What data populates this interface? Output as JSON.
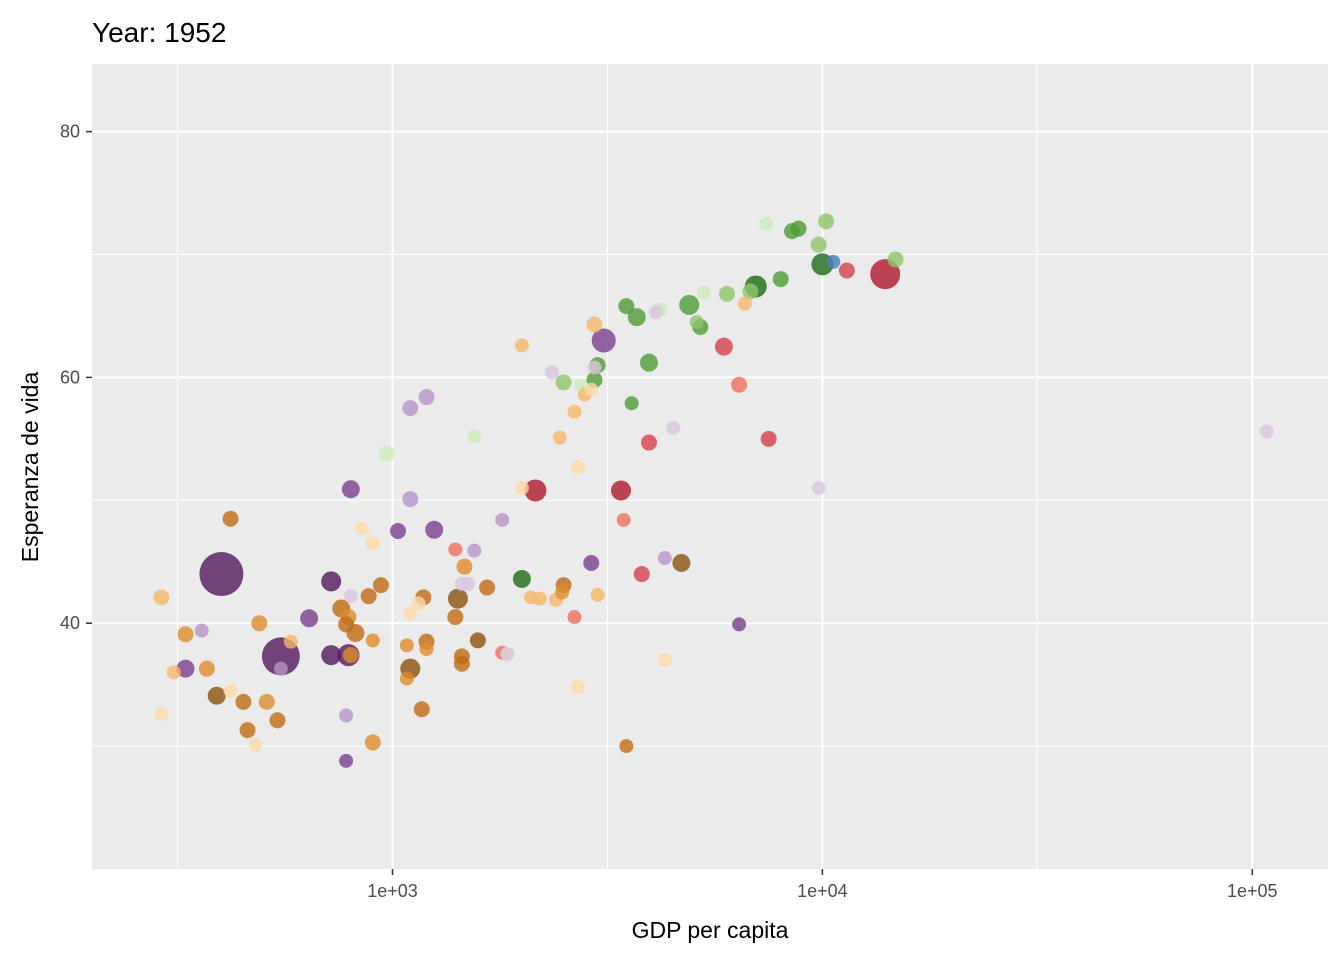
{
  "chart_data": {
    "type": "scatter",
    "title": "Year: 1952",
    "xlabel": "GDP per capita",
    "ylabel": "Esperanza de vida",
    "x_scale": "log10",
    "xlim": [
      200,
      150000
    ],
    "ylim": [
      20,
      85.5
    ],
    "x_ticks": [
      {
        "value": 1000,
        "label": "1e+03"
      },
      {
        "value": 10000,
        "label": "1e+04"
      },
      {
        "value": 100000,
        "label": "1e+05"
      }
    ],
    "y_ticks": [
      {
        "value": 40,
        "label": "40"
      },
      {
        "value": 60,
        "label": "60"
      },
      {
        "value": 80,
        "label": "80"
      }
    ],
    "grid": true,
    "legend": "none",
    "colors": {
      "panel": "#ebebeb",
      "grid": "#ffffff",
      "purple_dark": "#54195e",
      "purple": "#7b3f92",
      "purple_light": "#b893c9",
      "purple_pale": "#dbc6e0",
      "brown": "#8c510a",
      "orange_dark": "#c06b13",
      "orange": "#e08b2a",
      "orange_light": "#f7b86a",
      "orange_pale": "#fdd9a6",
      "red_dark": "#b2182b",
      "red": "#d6404a",
      "red_light": "#ef6f5e",
      "green_dark": "#1b6b13",
      "green": "#4d9c33",
      "green_light": "#8fc569",
      "green_pale": "#cdeaba",
      "blue": "#4a7cb8"
    },
    "points": [
      {
        "x": 400,
        "y": 44,
        "s": 22,
        "c": "purple_dark"
      },
      {
        "x": 550,
        "y": 37.3,
        "s": 19,
        "c": "purple_dark"
      },
      {
        "x": 14000,
        "y": 68.4,
        "s": 15,
        "c": "red_dark"
      },
      {
        "x": 3100,
        "y": 63,
        "s": 12,
        "c": "purple"
      },
      {
        "x": 2150,
        "y": 50.8,
        "s": 11,
        "c": "red_dark"
      },
      {
        "x": 3400,
        "y": 50.8,
        "s": 10,
        "c": "red_dark"
      },
      {
        "x": 7000,
        "y": 67.4,
        "s": 11,
        "c": "green_dark"
      },
      {
        "x": 10000,
        "y": 69.2,
        "s": 11,
        "c": "green_dark"
      },
      {
        "x": 4900,
        "y": 65.9,
        "s": 10,
        "c": "green"
      },
      {
        "x": 3700,
        "y": 64.9,
        "s": 9,
        "c": "green"
      },
      {
        "x": 3950,
        "y": 61.2,
        "s": 9,
        "c": "green"
      },
      {
        "x": 3000,
        "y": 61,
        "s": 8,
        "c": "green"
      },
      {
        "x": 2950,
        "y": 59.8,
        "s": 8,
        "c": "green"
      },
      {
        "x": 2000,
        "y": 43.6,
        "s": 9,
        "c": "green_dark"
      },
      {
        "x": 3500,
        "y": 65.8,
        "s": 8,
        "c": "green"
      },
      {
        "x": 3600,
        "y": 57.9,
        "s": 7,
        "c": "green"
      },
      {
        "x": 5200,
        "y": 64.1,
        "s": 8,
        "c": "green"
      },
      {
        "x": 5100,
        "y": 64.5,
        "s": 7,
        "c": "green_light"
      },
      {
        "x": 6000,
        "y": 66.8,
        "s": 8,
        "c": "green_light"
      },
      {
        "x": 6800,
        "y": 67,
        "s": 8,
        "c": "green_light"
      },
      {
        "x": 8000,
        "y": 68,
        "s": 8,
        "c": "green"
      },
      {
        "x": 8500,
        "y": 71.9,
        "s": 8,
        "c": "green"
      },
      {
        "x": 8800,
        "y": 72.1,
        "s": 8,
        "c": "green"
      },
      {
        "x": 9800,
        "y": 70.8,
        "s": 8,
        "c": "green_light"
      },
      {
        "x": 10200,
        "y": 72.7,
        "s": 8,
        "c": "green_light"
      },
      {
        "x": 14800,
        "y": 69.6,
        "s": 8,
        "c": "green_light"
      },
      {
        "x": 7400,
        "y": 72.5,
        "s": 7,
        "c": "green_pale"
      },
      {
        "x": 5300,
        "y": 66.9,
        "s": 7,
        "c": "green_pale"
      },
      {
        "x": 4200,
        "y": 65.5,
        "s": 7,
        "c": "green_pale"
      },
      {
        "x": 2500,
        "y": 59.6,
        "s": 8,
        "c": "green_light"
      },
      {
        "x": 1550,
        "y": 55.2,
        "s": 7,
        "c": "green_pale"
      },
      {
        "x": 970,
        "y": 53.8,
        "s": 8,
        "c": "green_pale"
      },
      {
        "x": 2750,
        "y": 59.3,
        "s": 7,
        "c": "green_pale"
      },
      {
        "x": 10600,
        "y": 69.4,
        "s": 7,
        "c": "blue"
      },
      {
        "x": 5900,
        "y": 62.5,
        "s": 9,
        "c": "red"
      },
      {
        "x": 11400,
        "y": 68.7,
        "s": 8,
        "c": "red"
      },
      {
        "x": 7500,
        "y": 55,
        "s": 8,
        "c": "red"
      },
      {
        "x": 3950,
        "y": 54.7,
        "s": 8,
        "c": "red"
      },
      {
        "x": 3800,
        "y": 44,
        "s": 8,
        "c": "red"
      },
      {
        "x": 6400,
        "y": 59.4,
        "s": 8,
        "c": "red_light"
      },
      {
        "x": 3450,
        "y": 48.4,
        "s": 7,
        "c": "red_light"
      },
      {
        "x": 1400,
        "y": 46,
        "s": 7,
        "c": "red_light"
      },
      {
        "x": 1800,
        "y": 37.6,
        "s": 7,
        "c": "red_light"
      },
      {
        "x": 2650,
        "y": 40.5,
        "s": 7,
        "c": "red_light"
      },
      {
        "x": 2000,
        "y": 62.6,
        "s": 7,
        "c": "orange_light"
      },
      {
        "x": 2950,
        "y": 64.3,
        "s": 8,
        "c": "orange_light"
      },
      {
        "x": 6600,
        "y": 66,
        "s": 7,
        "c": "orange_light"
      },
      {
        "x": 2650,
        "y": 57.2,
        "s": 7,
        "c": "orange_light"
      },
      {
        "x": 2800,
        "y": 58.6,
        "s": 7,
        "c": "orange_light"
      },
      {
        "x": 2450,
        "y": 55.1,
        "s": 7,
        "c": "orange_light"
      },
      {
        "x": 2700,
        "y": 52.7,
        "s": 7,
        "c": "orange_pale"
      },
      {
        "x": 2000,
        "y": 51,
        "s": 7,
        "c": "orange_pale"
      },
      {
        "x": 2900,
        "y": 59,
        "s": 7,
        "c": "orange_pale"
      },
      {
        "x": 2200,
        "y": 42,
        "s": 7,
        "c": "orange_light"
      },
      {
        "x": 2400,
        "y": 41.9,
        "s": 7,
        "c": "orange_light"
      },
      {
        "x": 3000,
        "y": 42.3,
        "s": 7,
        "c": "orange_light"
      },
      {
        "x": 2100,
        "y": 42.1,
        "s": 7,
        "c": "orange_light"
      },
      {
        "x": 4300,
        "y": 37,
        "s": 7,
        "c": "orange_pale"
      },
      {
        "x": 2700,
        "y": 34.8,
        "s": 7,
        "c": "orange_pale"
      },
      {
        "x": 1150,
        "y": 41.6,
        "s": 7,
        "c": "orange_pale"
      },
      {
        "x": 1100,
        "y": 40.8,
        "s": 7,
        "c": "orange_pale"
      },
      {
        "x": 900,
        "y": 46.5,
        "s": 7,
        "c": "orange_pale"
      },
      {
        "x": 850,
        "y": 47.7,
        "s": 7,
        "c": "orange_pale"
      },
      {
        "x": 290,
        "y": 42.1,
        "s": 8,
        "c": "orange_light"
      },
      {
        "x": 290,
        "y": 32.6,
        "s": 7,
        "c": "orange_pale"
      },
      {
        "x": 310,
        "y": 36,
        "s": 7,
        "c": "orange_light"
      },
      {
        "x": 420,
        "y": 34.5,
        "s": 7,
        "c": "orange_pale"
      },
      {
        "x": 480,
        "y": 30.1,
        "s": 7,
        "c": "orange_pale"
      },
      {
        "x": 1850,
        "y": 37.5,
        "s": 7,
        "c": "orange_pale"
      },
      {
        "x": 420,
        "y": 48.5,
        "s": 8,
        "c": "orange_dark"
      },
      {
        "x": 330,
        "y": 39.1,
        "s": 8,
        "c": "orange"
      },
      {
        "x": 370,
        "y": 36.3,
        "s": 8,
        "c": "orange"
      },
      {
        "x": 450,
        "y": 33.6,
        "s": 8,
        "c": "orange_dark"
      },
      {
        "x": 490,
        "y": 40,
        "s": 8,
        "c": "orange"
      },
      {
        "x": 510,
        "y": 33.6,
        "s": 8,
        "c": "orange"
      },
      {
        "x": 540,
        "y": 32.1,
        "s": 8,
        "c": "orange_dark"
      },
      {
        "x": 460,
        "y": 31.3,
        "s": 8,
        "c": "orange_dark"
      },
      {
        "x": 580,
        "y": 38.5,
        "s": 7,
        "c": "orange_light"
      },
      {
        "x": 760,
        "y": 41.2,
        "s": 9,
        "c": "orange_dark"
      },
      {
        "x": 790,
        "y": 40.5,
        "s": 8,
        "c": "orange"
      },
      {
        "x": 780,
        "y": 39.9,
        "s": 8,
        "c": "orange_dark"
      },
      {
        "x": 820,
        "y": 39.2,
        "s": 9,
        "c": "orange_dark"
      },
      {
        "x": 800,
        "y": 37.4,
        "s": 8,
        "c": "orange"
      },
      {
        "x": 880,
        "y": 42.2,
        "s": 8,
        "c": "orange_dark"
      },
      {
        "x": 900,
        "y": 38.6,
        "s": 7,
        "c": "orange"
      },
      {
        "x": 940,
        "y": 43.1,
        "s": 8,
        "c": "orange_dark"
      },
      {
        "x": 900,
        "y": 30.3,
        "s": 8,
        "c": "orange"
      },
      {
        "x": 1080,
        "y": 38.2,
        "s": 7,
        "c": "orange"
      },
      {
        "x": 1080,
        "y": 35.5,
        "s": 7,
        "c": "orange"
      },
      {
        "x": 1100,
        "y": 36.3,
        "s": 10,
        "c": "brown"
      },
      {
        "x": 1180,
        "y": 42.1,
        "s": 8,
        "c": "orange_dark"
      },
      {
        "x": 1200,
        "y": 38.5,
        "s": 8,
        "c": "orange_dark"
      },
      {
        "x": 1200,
        "y": 37.9,
        "s": 7,
        "c": "orange"
      },
      {
        "x": 1170,
        "y": 33,
        "s": 8,
        "c": "orange_dark"
      },
      {
        "x": 1420,
        "y": 42,
        "s": 10,
        "c": "brown"
      },
      {
        "x": 1400,
        "y": 40.5,
        "s": 8,
        "c": "orange_dark"
      },
      {
        "x": 1470,
        "y": 44.6,
        "s": 8,
        "c": "orange"
      },
      {
        "x": 1450,
        "y": 37.3,
        "s": 8,
        "c": "orange_dark"
      },
      {
        "x": 1450,
        "y": 36.7,
        "s": 8,
        "c": "orange_dark"
      },
      {
        "x": 1580,
        "y": 38.6,
        "s": 8,
        "c": "brown"
      },
      {
        "x": 1660,
        "y": 42.9,
        "s": 8,
        "c": "orange_dark"
      },
      {
        "x": 2500,
        "y": 43.1,
        "s": 8,
        "c": "orange_dark"
      },
      {
        "x": 2480,
        "y": 42.5,
        "s": 7,
        "c": "orange"
      },
      {
        "x": 3500,
        "y": 30,
        "s": 7,
        "c": "orange_dark"
      },
      {
        "x": 4700,
        "y": 44.9,
        "s": 9,
        "c": "brown"
      },
      {
        "x": 390,
        "y": 34.1,
        "s": 9,
        "c": "brown"
      },
      {
        "x": 720,
        "y": 43.4,
        "s": 10,
        "c": "purple_dark"
      },
      {
        "x": 720,
        "y": 37.4,
        "s": 10,
        "c": "purple_dark"
      },
      {
        "x": 790,
        "y": 37.4,
        "s": 11,
        "c": "purple_dark"
      },
      {
        "x": 640,
        "y": 40.4,
        "s": 9,
        "c": "purple"
      },
      {
        "x": 1250,
        "y": 47.6,
        "s": 9,
        "c": "purple"
      },
      {
        "x": 1030,
        "y": 47.5,
        "s": 8,
        "c": "purple"
      },
      {
        "x": 800,
        "y": 50.9,
        "s": 9,
        "c": "purple"
      },
      {
        "x": 2900,
        "y": 44.9,
        "s": 8,
        "c": "purple"
      },
      {
        "x": 780,
        "y": 28.8,
        "s": 7,
        "c": "purple"
      },
      {
        "x": 6400,
        "y": 39.9,
        "s": 7,
        "c": "purple"
      },
      {
        "x": 4300,
        "y": 45.3,
        "s": 7,
        "c": "purple_light"
      },
      {
        "x": 330,
        "y": 36.3,
        "s": 9,
        "c": "purple"
      },
      {
        "x": 1100,
        "y": 57.5,
        "s": 8,
        "c": "purple_light"
      },
      {
        "x": 1200,
        "y": 58.4,
        "s": 8,
        "c": "purple_light"
      },
      {
        "x": 1100,
        "y": 50.1,
        "s": 8,
        "c": "purple_light"
      },
      {
        "x": 1800,
        "y": 48.4,
        "s": 7,
        "c": "purple_light"
      },
      {
        "x": 1550,
        "y": 45.9,
        "s": 7,
        "c": "purple_light"
      },
      {
        "x": 360,
        "y": 39.4,
        "s": 7,
        "c": "purple_light"
      },
      {
        "x": 780,
        "y": 32.5,
        "s": 7,
        "c": "purple_light"
      },
      {
        "x": 550,
        "y": 36.3,
        "s": 7,
        "c": "purple_light"
      },
      {
        "x": 1450,
        "y": 43.2,
        "s": 7,
        "c": "purple_pale"
      },
      {
        "x": 1500,
        "y": 43.2,
        "s": 7,
        "c": "purple_pale"
      },
      {
        "x": 2350,
        "y": 60.4,
        "s": 7,
        "c": "purple_pale"
      },
      {
        "x": 2950,
        "y": 60.8,
        "s": 7,
        "c": "purple_pale"
      },
      {
        "x": 4100,
        "y": 65.3,
        "s": 7,
        "c": "purple_pale"
      },
      {
        "x": 4500,
        "y": 55.9,
        "s": 7,
        "c": "purple_pale"
      },
      {
        "x": 9800,
        "y": 51,
        "s": 7,
        "c": "purple_pale"
      },
      {
        "x": 108000,
        "y": 55.6,
        "s": 7,
        "c": "purple_pale"
      },
      {
        "x": 800,
        "y": 42.2,
        "s": 7,
        "c": "purple_pale"
      },
      {
        "x": 1850,
        "y": 37.5,
        "s": 7,
        "c": "purple_pale"
      }
    ]
  }
}
